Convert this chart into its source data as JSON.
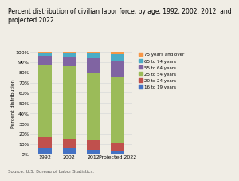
{
  "title": "Percent distribution of civilian labor force, by age, 1992, 2002, 2012, and\nprojected 2022",
  "categories": [
    "1992",
    "2002",
    "2012",
    "Projected 2022"
  ],
  "series": {
    "16 to 19 years": [
      5.5,
      5.5,
      4.5,
      3.5
    ],
    "20 to 24 years": [
      11.0,
      9.5,
      9.0,
      8.0
    ],
    "25 to 54 years": [
      71.0,
      71.0,
      66.5,
      63.5
    ],
    "55 to 64 years": [
      8.5,
      9.5,
      14.0,
      16.5
    ],
    "65 to 74 years": [
      2.5,
      3.0,
      4.5,
      6.0
    ],
    "75 years and over": [
      1.5,
      1.5,
      1.5,
      2.5
    ]
  },
  "colors": {
    "16 to 19 years": "#4472c4",
    "20 to 24 years": "#c0504d",
    "25 to 54 years": "#9bbb59",
    "55 to 64 years": "#8064a2",
    "65 to 74 years": "#4bacc6",
    "75 years and over": "#f79646"
  },
  "ylabel": "Percent distribution",
  "source": "Source: U.S. Bureau of Labor Statistics.",
  "ylim": [
    0,
    100
  ],
  "ytick_labels": [
    "0%",
    "10%",
    "20%",
    "30%",
    "40%",
    "50%",
    "60%",
    "70%",
    "80%",
    "90%",
    "100%"
  ],
  "background_color": "#f0ede5",
  "grid_color": "#d9d9d9",
  "title_fontsize": 5.5,
  "label_fontsize": 4.5,
  "tick_fontsize": 4.5,
  "source_fontsize": 4.0,
  "legend_fontsize": 4.0
}
